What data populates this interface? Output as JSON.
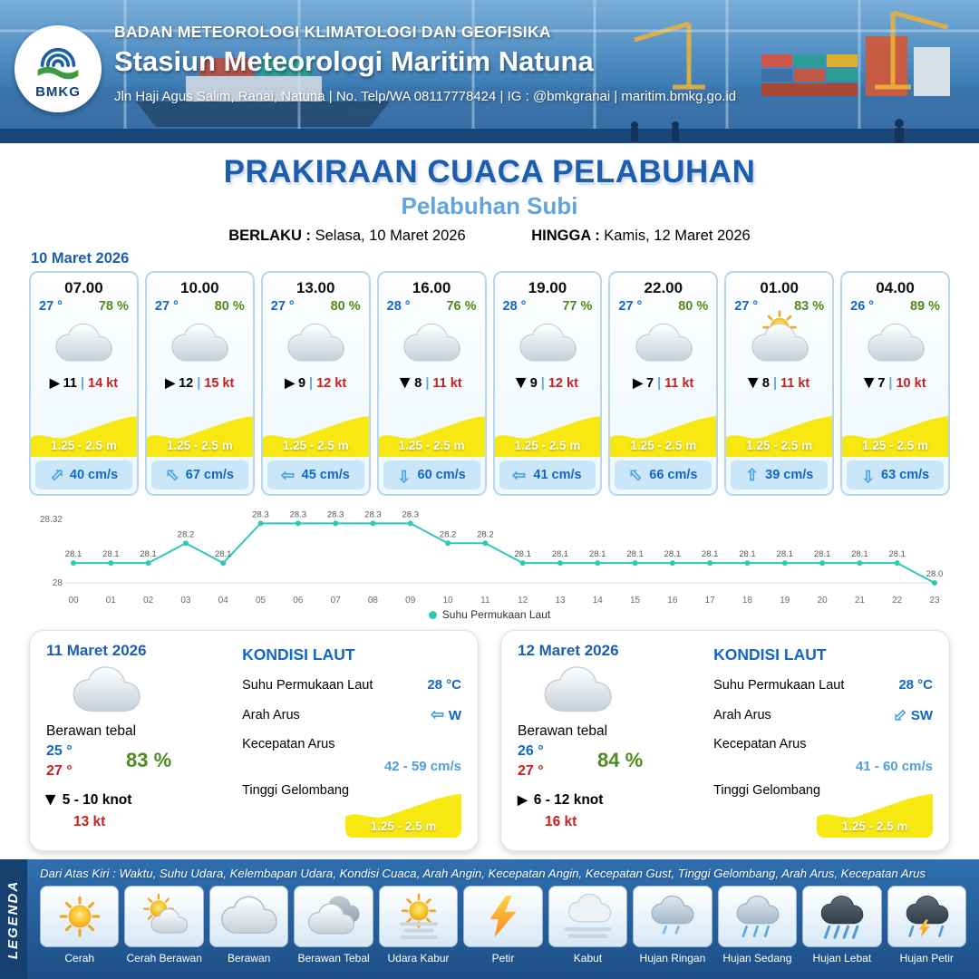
{
  "header": {
    "logo_text": "BMKG",
    "agency": "BADAN METEOROLOGI KLIMATOLOGI DAN GEOFISIKA",
    "station": "Stasiun Meteorologi Maritim Natuna",
    "contact": "Jln Haji Agus Salim, Ranai, Natuna  | No. Telp/WA 08117778424 | IG : @bmkgranai | maritim.bmkg.go.id"
  },
  "title": {
    "main": "PRAKIRAAN CUACA PELABUHAN",
    "subtitle": "Pelabuhan Subi",
    "valid_label": "BERLAKU :",
    "valid_value": "Selasa, 10 Maret 2026",
    "until_label": "HINGGA :",
    "until_value": "Kamis, 12 Maret 2026"
  },
  "forecast": {
    "date": "10 Maret 2026",
    "separator": "|",
    "wind_arrow_glyph": "▶",
    "current_arrow_glyph": "⇧",
    "cards": [
      {
        "time": "07.00",
        "temp": "27 °",
        "humidity": "78 %",
        "icon": "cloud",
        "wind_value": "11",
        "wind_gust": "14 kt",
        "wind_dir_deg": 0,
        "wave": "1.25 - 2.5 m",
        "current_speed": "40 cm/s",
        "current_dir_deg": 45
      },
      {
        "time": "10.00",
        "temp": "27 °",
        "humidity": "80 %",
        "icon": "cloud",
        "wind_value": "12",
        "wind_gust": "15 kt",
        "wind_dir_deg": 0,
        "wave": "1.25 - 2.5 m",
        "current_speed": "67 cm/s",
        "current_dir_deg": -45
      },
      {
        "time": "13.00",
        "temp": "27 °",
        "humidity": "80 %",
        "icon": "cloud",
        "wind_value": "9",
        "wind_gust": "12 kt",
        "wind_dir_deg": 0,
        "wave": "1.25 - 2.5 m",
        "current_speed": "45 cm/s",
        "current_dir_deg": -90
      },
      {
        "time": "16.00",
        "temp": "28 °",
        "humidity": "76 %",
        "icon": "cloud",
        "wind_value": "8",
        "wind_gust": "11 kt",
        "wind_dir_deg": 90,
        "wave": "1.25 - 2.5 m",
        "current_speed": "60 cm/s",
        "current_dir_deg": 180
      },
      {
        "time": "19.00",
        "temp": "28 °",
        "humidity": "77 %",
        "icon": "cloud",
        "wind_value": "9",
        "wind_gust": "12 kt",
        "wind_dir_deg": 90,
        "wave": "1.25 - 2.5 m",
        "current_speed": "41 cm/s",
        "current_dir_deg": -90
      },
      {
        "time": "22.00",
        "temp": "27 °",
        "humidity": "80 %",
        "icon": "cloud",
        "wind_value": "7",
        "wind_gust": "11 kt",
        "wind_dir_deg": 0,
        "wave": "1.25 - 2.5 m",
        "current_speed": "66 cm/s",
        "current_dir_deg": -45
      },
      {
        "time": "01.00",
        "temp": "27 °",
        "humidity": "83 %",
        "icon": "cloud-sun",
        "wind_value": "8",
        "wind_gust": "11 kt",
        "wind_dir_deg": 90,
        "wave": "1.25 - 2.5 m",
        "current_speed": "39 cm/s",
        "current_dir_deg": 0
      },
      {
        "time": "04.00",
        "temp": "26 °",
        "humidity": "89 %",
        "icon": "cloud",
        "wind_value": "7",
        "wind_gust": "10 kt",
        "wind_dir_deg": 90,
        "wave": "1.25 - 2.5 m",
        "current_speed": "63 cm/s",
        "current_dir_deg": 180
      }
    ]
  },
  "chart_data": {
    "type": "line",
    "series": [
      {
        "name": "Suhu Permukaan Laut",
        "values": [
          28.1,
          28.1,
          28.1,
          28.2,
          28.1,
          28.3,
          28.3,
          28.3,
          28.3,
          28.3,
          28.2,
          28.2,
          28.1,
          28.1,
          28.1,
          28.1,
          28.1,
          28.1,
          28.1,
          28.1,
          28.1,
          28.1,
          28.1,
          28.0
        ]
      }
    ],
    "x": [
      "00",
      "01",
      "02",
      "03",
      "04",
      "05",
      "06",
      "07",
      "08",
      "09",
      "10",
      "11",
      "12",
      "13",
      "14",
      "15",
      "16",
      "17",
      "18",
      "19",
      "20",
      "21",
      "22",
      "23"
    ],
    "ylim": [
      28,
      28.32
    ],
    "yticks": [
      "28.32",
      "28"
    ],
    "line_color": "#2fc8b8",
    "legend_position": "bottom",
    "grid": false
  },
  "daily": [
    {
      "date": "11 Maret 2026",
      "condition": "Berawan tebal",
      "temp_min": "25 °",
      "temp_max": "27 °",
      "humidity": "83 %",
      "wind_range": "5 - 10 knot",
      "wind_dir_deg": 90,
      "gust": "13 kt",
      "sea": {
        "heading": "KONDISI LAUT",
        "sst_label": "Suhu Permukaan Laut",
        "sst": "28 °C",
        "dir_label": "Arah Arus",
        "dir": "W",
        "dir_deg": -90,
        "speed_label": "Kecepatan Arus",
        "speed": "42 - 59 cm/s",
        "wave_label": "Tinggi Gelombang",
        "wave": "1.25 - 2.5 m"
      }
    },
    {
      "date": "12 Maret 2026",
      "condition": "Berawan tebal",
      "temp_min": "26 °",
      "temp_max": "27 °",
      "humidity": "84 %",
      "wind_range": "6 - 12 knot",
      "wind_dir_deg": 0,
      "gust": "16 kt",
      "sea": {
        "heading": "KONDISI LAUT",
        "sst_label": "Suhu Permukaan Laut",
        "sst": "28 °C",
        "dir_label": "Arah Arus",
        "dir": "SW",
        "dir_deg": -135,
        "speed_label": "Kecepatan Arus",
        "speed": "41 - 60 cm/s",
        "wave_label": "Tinggi Gelombang",
        "wave": "1.25 - 2.5 m"
      }
    }
  ],
  "legend": {
    "title": "LEGENDA",
    "description": "Dari Atas Kiri : Waktu, Suhu Udara, Kelembapan Udara, Kondisi Cuaca, Arah Angin, Kecepatan Angin, Kecepatan Gust, Tinggi Gelombang, Arah Arus, Kecepatan Arus",
    "items": [
      {
        "label": "Cerah",
        "icon": "sun"
      },
      {
        "label": "Cerah Berawan",
        "icon": "sun-cloud"
      },
      {
        "label": "Berawan",
        "icon": "cloud"
      },
      {
        "label": "Berawan Tebal",
        "icon": "thick-cloud"
      },
      {
        "label": "Udara Kabur",
        "icon": "hazy-sun"
      },
      {
        "label": "Petir",
        "icon": "lightning"
      },
      {
        "label": "Kabut",
        "icon": "fog"
      },
      {
        "label": "Hujan Ringan",
        "icon": "light-rain"
      },
      {
        "label": "Hujan Sedang",
        "icon": "moderate-rain"
      },
      {
        "label": "Hujan Lebat",
        "icon": "heavy-rain"
      },
      {
        "label": "Hujan Petir",
        "icon": "thunderstorm"
      }
    ]
  }
}
